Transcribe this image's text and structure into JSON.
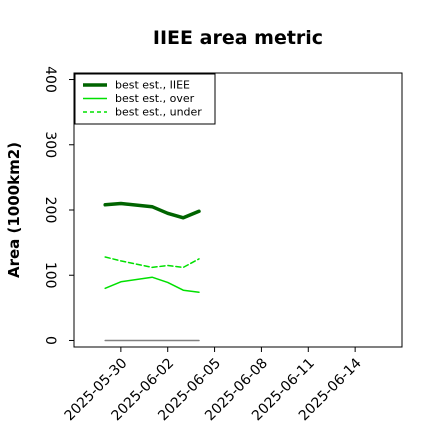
{
  "chart_data": {
    "type": "line",
    "title": "IIEE area metric",
    "xlabel": "",
    "ylabel": "Area (1000km2)",
    "ylim": [
      -10,
      410
    ],
    "xlim": [
      "2025-05-27",
      "2025-06-17"
    ],
    "yticks": [
      0,
      100,
      200,
      300,
      400
    ],
    "xticks": [
      "2025-05-30",
      "2025-06-02",
      "2025-06-05",
      "2025-06-08",
      "2025-06-11",
      "2025-06-14"
    ],
    "grid": false,
    "legend_position": "top-left",
    "x": [
      "2025-05-29",
      "2025-05-30",
      "2025-06-01",
      "2025-06-02",
      "2025-06-03",
      "2025-06-04"
    ],
    "series": [
      {
        "name": "best est., IIEE",
        "color": "#006400",
        "style": "solid",
        "width": 3.5,
        "values": [
          208,
          210,
          205,
          195,
          188,
          198
        ]
      },
      {
        "name": "best est., over",
        "color": "#00e000",
        "style": "solid",
        "width": 1.5,
        "values": [
          80,
          90,
          97,
          89,
          77,
          74
        ]
      },
      {
        "name": "best est., under",
        "color": "#00e000",
        "style": "dashed",
        "width": 1.5,
        "values": [
          128,
          122,
          112,
          115,
          112,
          125
        ]
      },
      {
        "name": "",
        "color": "#808080",
        "style": "solid",
        "width": 1.5,
        "values": [
          0,
          0,
          0,
          0,
          0,
          0
        ]
      }
    ]
  }
}
